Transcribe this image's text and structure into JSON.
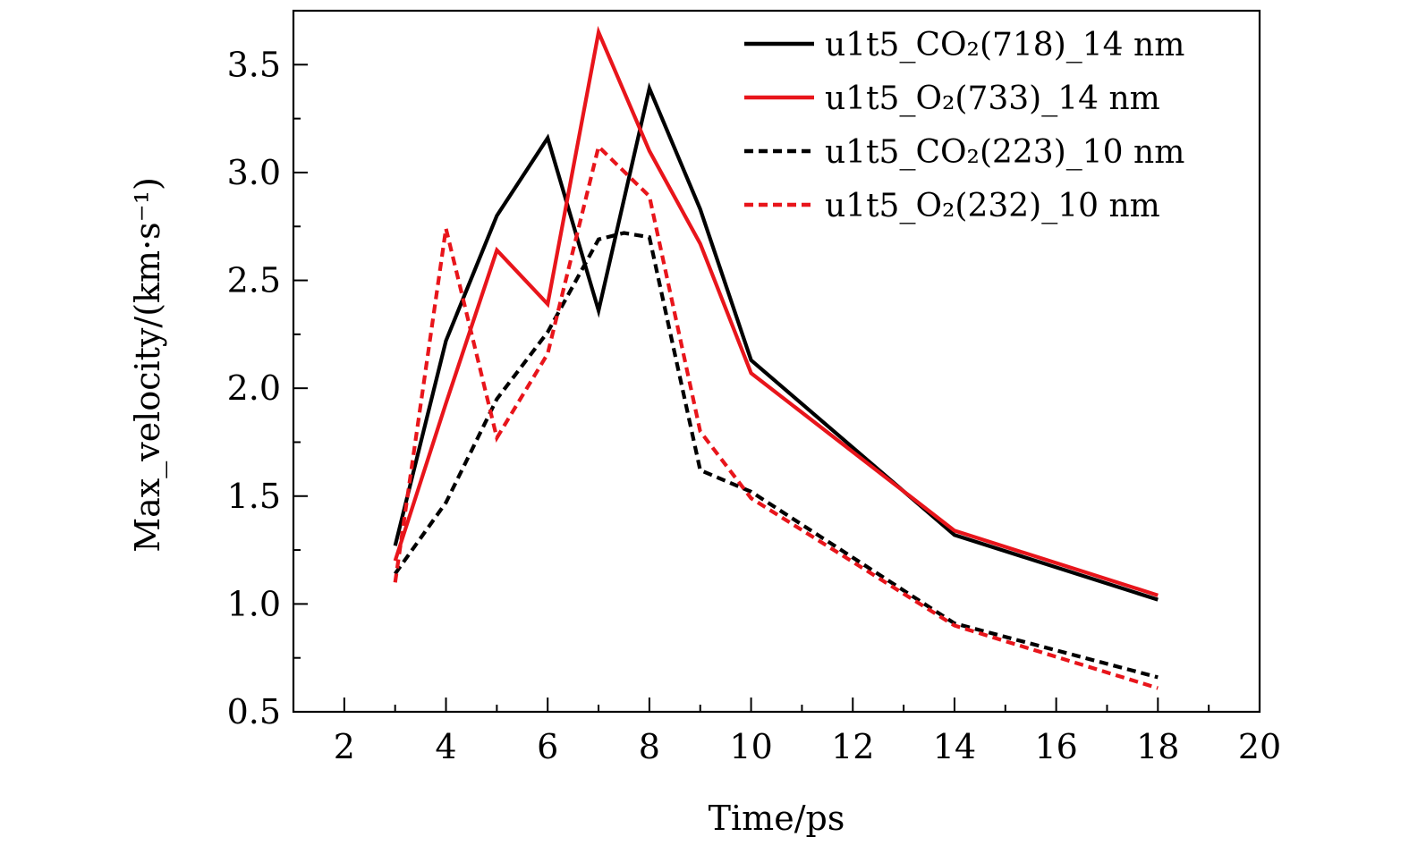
{
  "chart_data": {
    "type": "line",
    "xlabel": "Time/ps",
    "ylabel": "Max_velocity/(km·s⁻¹)",
    "xlim": [
      1,
      20
    ],
    "ylim": [
      0.5,
      3.75
    ],
    "xticks": [
      2,
      4,
      6,
      8,
      10,
      12,
      14,
      16,
      18,
      20
    ],
    "yticks": [
      0.5,
      1.0,
      1.5,
      2.0,
      2.5,
      3.0,
      3.5
    ],
    "ytick_labels": [
      "0.5",
      "1.0",
      "1.5",
      "2.0",
      "2.5",
      "3.0",
      "3.5"
    ],
    "grid": false,
    "legend_position": "top-right",
    "series": [
      {
        "name": "u1t5_CO₂(718)_14 nm",
        "color": "#000000",
        "dash": "solid",
        "x": [
          3,
          4,
          5,
          6,
          7,
          8,
          9,
          10,
          14,
          18
        ],
        "values": [
          1.27,
          2.22,
          2.8,
          3.16,
          2.36,
          3.39,
          2.83,
          2.13,
          1.32,
          1.02
        ]
      },
      {
        "name": "u1t5_O₂(733)_14 nm",
        "color": "#e8151b",
        "dash": "solid",
        "x": [
          3,
          4,
          5,
          6,
          7,
          8,
          9,
          10,
          14,
          18
        ],
        "values": [
          1.2,
          1.93,
          2.64,
          2.39,
          3.65,
          3.1,
          2.67,
          2.07,
          1.34,
          1.04
        ]
      },
      {
        "name": "u1t5_CO₂(223)_10 nm",
        "color": "#000000",
        "dash": "dashed",
        "x": [
          3,
          4,
          5,
          6,
          7,
          7.5,
          8,
          9,
          10,
          14,
          18
        ],
        "values": [
          1.14,
          1.47,
          1.95,
          2.26,
          2.69,
          2.72,
          2.7,
          1.62,
          1.52,
          0.91,
          0.66
        ]
      },
      {
        "name": "u1t5_O₂(232)_10 nm",
        "color": "#e8151b",
        "dash": "dashed",
        "x": [
          3,
          4,
          5,
          6,
          7,
          8,
          9,
          10,
          14,
          18
        ],
        "values": [
          1.1,
          2.74,
          1.77,
          2.16,
          3.12,
          2.89,
          1.8,
          1.49,
          0.9,
          0.61
        ]
      }
    ]
  }
}
